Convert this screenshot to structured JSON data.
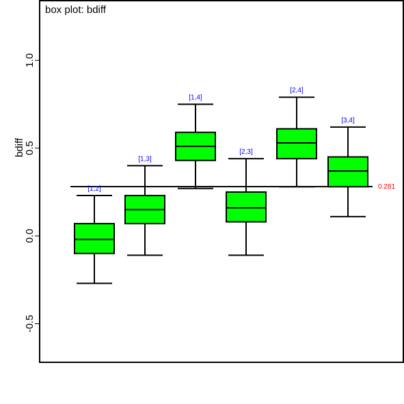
{
  "chart_data": {
    "type": "box",
    "title": "box plot: bdiff",
    "ylabel": "bdiff",
    "ylim": [
      -0.72,
      1.34
    ],
    "yticks": [
      -0.5,
      0.0,
      0.5,
      1.0
    ],
    "ytick_labels": [
      "-0.5",
      "0.0",
      "0.5",
      "1.0"
    ],
    "reference_line": {
      "value": 0.281,
      "label": "0.281"
    },
    "colors": {
      "box_fill": "#00ff00",
      "reference_label": "#ff0000",
      "group_label": "#0000ff",
      "line": "#000000"
    },
    "groups": [
      {
        "label": "[1,2]",
        "whisker_low": -0.27,
        "q1": -0.1,
        "median": -0.02,
        "q3": 0.07,
        "whisker_high": 0.23
      },
      {
        "label": "[1,3]",
        "whisker_low": -0.11,
        "q1": 0.07,
        "median": 0.15,
        "q3": 0.23,
        "whisker_high": 0.4
      },
      {
        "label": "[1,4]",
        "whisker_low": 0.27,
        "q1": 0.43,
        "median": 0.51,
        "q3": 0.59,
        "whisker_high": 0.75
      },
      {
        "label": "[2,3]",
        "whisker_low": -0.11,
        "q1": 0.08,
        "median": 0.16,
        "q3": 0.25,
        "whisker_high": 0.44
      },
      {
        "label": "[2,4]",
        "whisker_low": 0.28,
        "q1": 0.44,
        "median": 0.53,
        "q3": 0.61,
        "whisker_high": 0.79
      },
      {
        "label": "[3,4]",
        "whisker_low": 0.11,
        "q1": 0.28,
        "median": 0.37,
        "q3": 0.45,
        "whisker_high": 0.62
      }
    ]
  }
}
